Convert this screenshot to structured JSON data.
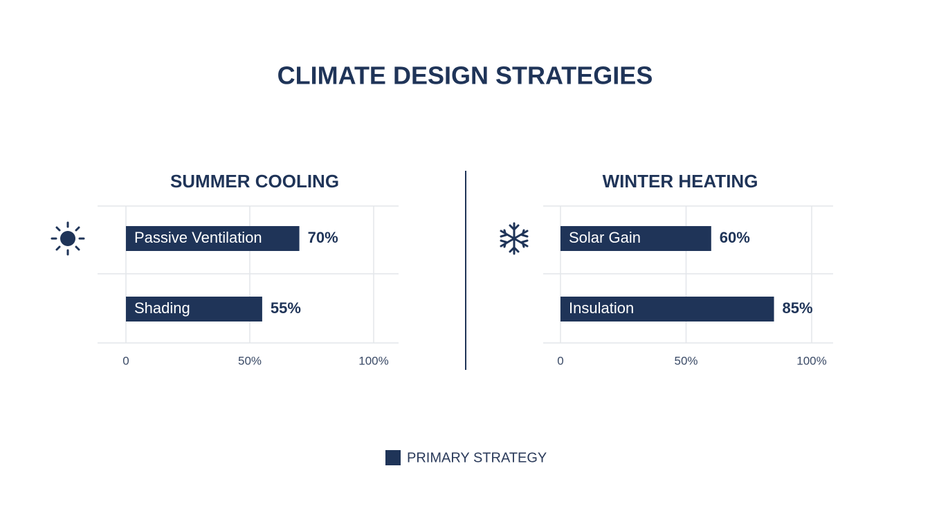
{
  "title": "CLIMATE DESIGN STRATEGIES",
  "legend": {
    "label": "PRIMARY STRATEGY",
    "color": "#1f3458"
  },
  "chart_data": [
    {
      "type": "bar",
      "orientation": "horizontal",
      "title": "SUMMER COOLING",
      "categories": [
        "Passive Ventilation",
        "Shading"
      ],
      "values": [
        70,
        55
      ],
      "value_labels": [
        "70%",
        "55%"
      ],
      "color": "#1f3458",
      "xlim": [
        0,
        100
      ],
      "xticks": [
        0,
        {
          "value": 50,
          "label": "50%"
        },
        {
          "value": 100,
          "label": "100%"
        }
      ],
      "grid": true
    },
    {
      "type": "bar",
      "orientation": "horizontal",
      "title": "WINTER HEATING",
      "categories": [
        "Solar Gain",
        "Insulation"
      ],
      "values": [
        60,
        85
      ],
      "value_labels": [
        "60%",
        "85%"
      ],
      "color": "#1f3458",
      "xlim": [
        0,
        100
      ],
      "xticks": [
        0,
        {
          "value": 50,
          "label": "50%"
        },
        {
          "value": 100,
          "label": "100%"
        }
      ],
      "grid": true
    }
  ]
}
